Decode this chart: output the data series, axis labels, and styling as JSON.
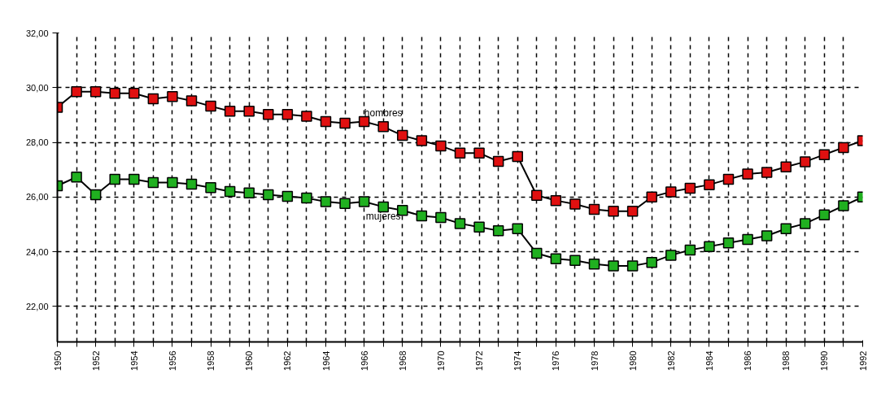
{
  "chart_data": {
    "type": "line",
    "marker": "square",
    "line_style": "solid",
    "grid": true,
    "x": [
      1950,
      1951,
      1952,
      1953,
      1954,
      1955,
      1956,
      1957,
      1958,
      1959,
      1960,
      1961,
      1962,
      1963,
      1964,
      1965,
      1966,
      1967,
      1968,
      1969,
      1970,
      1971,
      1972,
      1973,
      1974,
      1975,
      1976,
      1977,
      1978,
      1979,
      1980,
      1981,
      1982,
      1983,
      1984,
      1985,
      1986,
      1987,
      1988,
      1989,
      1990,
      1991,
      1992
    ],
    "xlim": [
      1950,
      1992
    ],
    "xticks": [
      1950,
      {
        "value": 1951,
        "label": null
      },
      1952,
      {
        "value": 1953,
        "label": null
      },
      1954,
      {
        "value": 1955,
        "label": null
      },
      1956,
      {
        "value": 1957,
        "label": null
      },
      1958,
      {
        "value": 1959,
        "label": null
      },
      1960,
      {
        "value": 1961,
        "label": null
      },
      1962,
      {
        "value": 1963,
        "label": null
      },
      1964,
      {
        "value": 1965,
        "label": null
      },
      1966,
      {
        "value": 1967,
        "label": null
      },
      1968,
      {
        "value": 1969,
        "label": null
      },
      1970,
      {
        "value": 1971,
        "label": null
      },
      1972,
      {
        "value": 1973,
        "label": null
      },
      1974,
      {
        "value": 1975,
        "label": null
      },
      1976,
      {
        "value": 1977,
        "label": null
      },
      1978,
      {
        "value": 1979,
        "label": null
      },
      1980,
      {
        "value": 1981,
        "label": null
      },
      1982,
      {
        "value": 1983,
        "label": null
      },
      1984,
      {
        "value": 1985,
        "label": null
      },
      1986,
      {
        "value": 1987,
        "label": null
      },
      1988,
      {
        "value": 1989,
        "label": null
      },
      1990,
      {
        "value": 1991,
        "label": null
      },
      1992
    ],
    "ylim": [
      20.7,
      32
    ],
    "yticks": [
      {
        "value": 22,
        "label": "22,00"
      },
      {
        "value": 24,
        "label": "24,00"
      },
      {
        "value": 26,
        "label": "26,00"
      },
      {
        "value": 28,
        "label": "28,00"
      },
      {
        "value": 30,
        "label": "30,00"
      },
      {
        "value": 32,
        "label": "32,00"
      }
    ],
    "series": [
      {
        "name": "hombres",
        "color": "#e01010",
        "values": [
          29.28,
          29.85,
          29.85,
          29.79,
          29.79,
          29.59,
          29.67,
          29.52,
          29.32,
          29.14,
          29.14,
          29.02,
          29.02,
          28.95,
          28.76,
          28.7,
          28.76,
          28.57,
          28.25,
          28.06,
          27.87,
          27.61,
          27.61,
          27.3,
          27.48,
          26.06,
          25.87,
          25.74,
          25.55,
          25.48,
          25.48,
          26.0,
          26.19,
          26.32,
          26.45,
          26.65,
          26.84,
          26.9,
          27.1,
          27.29,
          27.55,
          27.81,
          28.06
        ]
      },
      {
        "name": "mujeres",
        "color": "#20b020",
        "values": [
          26.41,
          26.73,
          26.08,
          26.65,
          26.65,
          26.53,
          26.53,
          26.47,
          26.34,
          26.2,
          26.15,
          26.08,
          26.02,
          25.96,
          25.83,
          25.76,
          25.83,
          25.64,
          25.51,
          25.31,
          25.25,
          25.03,
          24.9,
          24.77,
          24.84,
          23.94,
          23.74,
          23.68,
          23.55,
          23.48,
          23.48,
          23.61,
          23.87,
          24.06,
          24.19,
          24.32,
          24.45,
          24.58,
          24.84,
          25.03,
          25.35,
          25.68,
          26.0
        ]
      }
    ]
  }
}
